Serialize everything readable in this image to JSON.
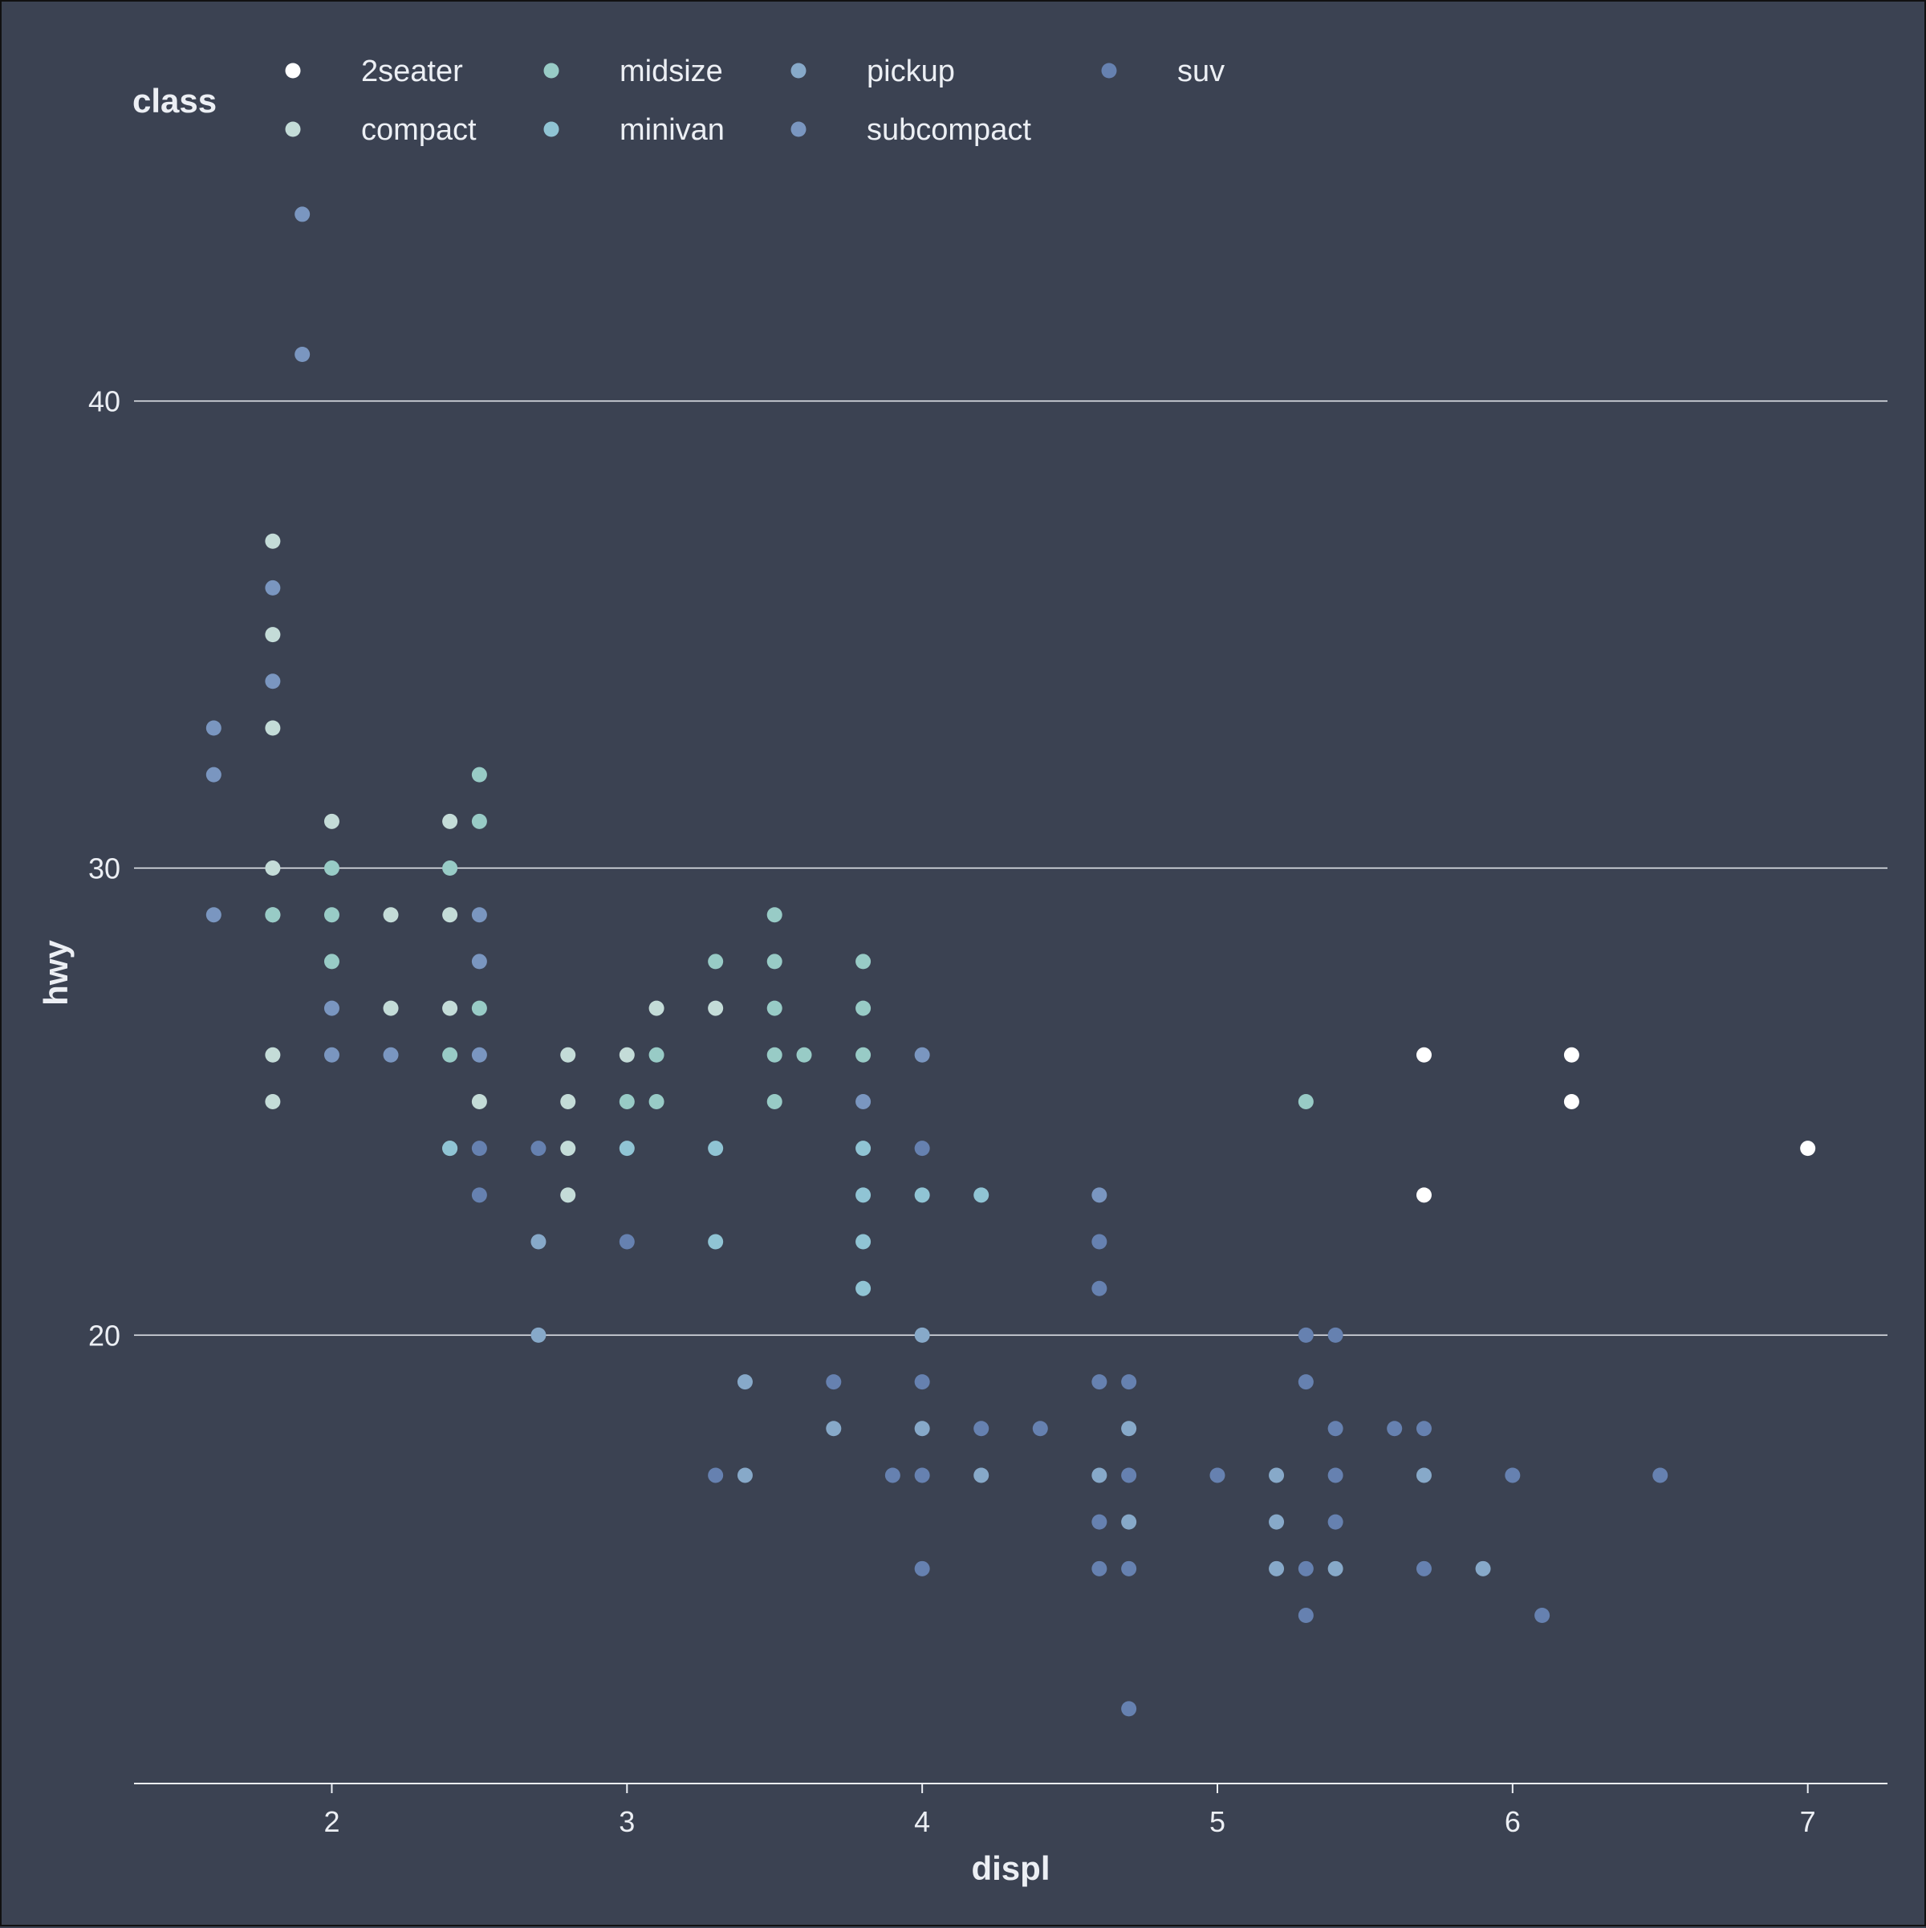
{
  "chart_data": {
    "type": "scatter",
    "xlabel": "displ",
    "ylabel": "hwy",
    "xlim": [
      1.33,
      7.27
    ],
    "ylim": [
      10.4,
      44.6
    ],
    "xticks": [
      2,
      3,
      4,
      5,
      6,
      7
    ],
    "yticks": [
      20,
      30,
      40
    ],
    "grid": "horizontal",
    "legend_placement": "top",
    "legend_title": "class",
    "colors": {
      "background": "#3b4252",
      "grid": "#eceff4",
      "text": "#eceff4"
    },
    "series": [
      {
        "name": "2seater",
        "color": "#ffffff",
        "points": [
          [
            5.7,
            26
          ],
          [
            5.7,
            23
          ],
          [
            6.2,
            26
          ],
          [
            6.2,
            25
          ],
          [
            7.0,
            24
          ]
        ]
      },
      {
        "name": "compact",
        "color": "#c4dcd8",
        "points": [
          [
            1.8,
            37
          ],
          [
            1.8,
            35
          ],
          [
            1.8,
            33
          ],
          [
            1.8,
            30
          ],
          [
            1.8,
            29
          ],
          [
            1.8,
            26
          ],
          [
            1.8,
            25
          ],
          [
            2.0,
            31
          ],
          [
            2.2,
            29
          ],
          [
            2.2,
            27
          ],
          [
            2.4,
            31
          ],
          [
            2.4,
            29
          ],
          [
            2.4,
            27
          ],
          [
            2.5,
            25
          ],
          [
            2.8,
            26
          ],
          [
            2.8,
            25
          ],
          [
            2.8,
            24
          ],
          [
            2.8,
            23
          ],
          [
            3.0,
            26
          ],
          [
            3.1,
            27
          ],
          [
            3.3,
            27
          ]
        ]
      },
      {
        "name": "midsize",
        "color": "#98cbc6",
        "points": [
          [
            1.8,
            29
          ],
          [
            2.0,
            30
          ],
          [
            2.0,
            29
          ],
          [
            2.0,
            28
          ],
          [
            2.4,
            30
          ],
          [
            2.4,
            26
          ],
          [
            2.4,
            24
          ],
          [
            2.5,
            32
          ],
          [
            2.5,
            31
          ],
          [
            2.5,
            27
          ],
          [
            3.0,
            25
          ],
          [
            3.1,
            26
          ],
          [
            3.1,
            25
          ],
          [
            3.3,
            28
          ],
          [
            3.5,
            29
          ],
          [
            3.5,
            28
          ],
          [
            3.5,
            27
          ],
          [
            3.5,
            26
          ],
          [
            3.5,
            25
          ],
          [
            3.6,
            26
          ],
          [
            3.8,
            28
          ],
          [
            3.8,
            27
          ],
          [
            3.8,
            26
          ],
          [
            5.3,
            25
          ]
        ]
      },
      {
        "name": "minivan",
        "color": "#90c4d4",
        "points": [
          [
            2.4,
            24
          ],
          [
            3.0,
            24
          ],
          [
            3.3,
            24
          ],
          [
            3.3,
            22
          ],
          [
            3.8,
            24
          ],
          [
            3.8,
            23
          ],
          [
            3.8,
            22
          ],
          [
            3.8,
            21
          ],
          [
            4.0,
            23
          ],
          [
            4.2,
            23
          ]
        ]
      },
      {
        "name": "pickup",
        "color": "#87a9c9",
        "points": [
          [
            2.7,
            22
          ],
          [
            2.7,
            20
          ],
          [
            3.4,
            19
          ],
          [
            3.4,
            17
          ],
          [
            3.7,
            18
          ],
          [
            4.0,
            20
          ],
          [
            4.0,
            18
          ],
          [
            4.2,
            17
          ],
          [
            4.6,
            17
          ],
          [
            4.7,
            18
          ],
          [
            4.7,
            16
          ],
          [
            5.2,
            17
          ],
          [
            5.2,
            16
          ],
          [
            5.2,
            15
          ],
          [
            5.4,
            15
          ],
          [
            5.7,
            17
          ],
          [
            5.9,
            15
          ]
        ]
      },
      {
        "name": "subcompact",
        "color": "#7a96c0",
        "points": [
          [
            1.6,
            33
          ],
          [
            1.6,
            32
          ],
          [
            1.6,
            29
          ],
          [
            1.8,
            36
          ],
          [
            1.8,
            34
          ],
          [
            1.9,
            44
          ],
          [
            1.9,
            41
          ],
          [
            2.0,
            27
          ],
          [
            2.0,
            26
          ],
          [
            2.2,
            26
          ],
          [
            2.5,
            29
          ],
          [
            2.5,
            28
          ],
          [
            2.5,
            26
          ],
          [
            3.8,
            25
          ],
          [
            4.0,
            26
          ],
          [
            4.6,
            23
          ]
        ]
      },
      {
        "name": "suv",
        "color": "#6681b0",
        "points": [
          [
            2.5,
            24
          ],
          [
            2.5,
            23
          ],
          [
            2.7,
            24
          ],
          [
            3.0,
            22
          ],
          [
            3.3,
            17
          ],
          [
            3.7,
            19
          ],
          [
            3.9,
            17
          ],
          [
            4.0,
            24
          ],
          [
            4.0,
            19
          ],
          [
            4.0,
            17
          ],
          [
            4.0,
            15
          ],
          [
            4.2,
            18
          ],
          [
            4.4,
            18
          ],
          [
            4.6,
            22
          ],
          [
            4.6,
            21
          ],
          [
            4.6,
            19
          ],
          [
            4.6,
            16
          ],
          [
            4.6,
            15
          ],
          [
            4.7,
            19
          ],
          [
            4.7,
            17
          ],
          [
            4.7,
            15
          ],
          [
            4.7,
            12
          ],
          [
            5.0,
            17
          ],
          [
            5.3,
            20
          ],
          [
            5.3,
            19
          ],
          [
            5.3,
            15
          ],
          [
            5.3,
            14
          ],
          [
            5.4,
            20
          ],
          [
            5.4,
            18
          ],
          [
            5.4,
            17
          ],
          [
            5.4,
            16
          ],
          [
            5.6,
            18
          ],
          [
            5.7,
            18
          ],
          [
            5.7,
            15
          ],
          [
            6.0,
            17
          ],
          [
            6.1,
            14
          ],
          [
            6.5,
            17
          ]
        ]
      }
    ]
  }
}
